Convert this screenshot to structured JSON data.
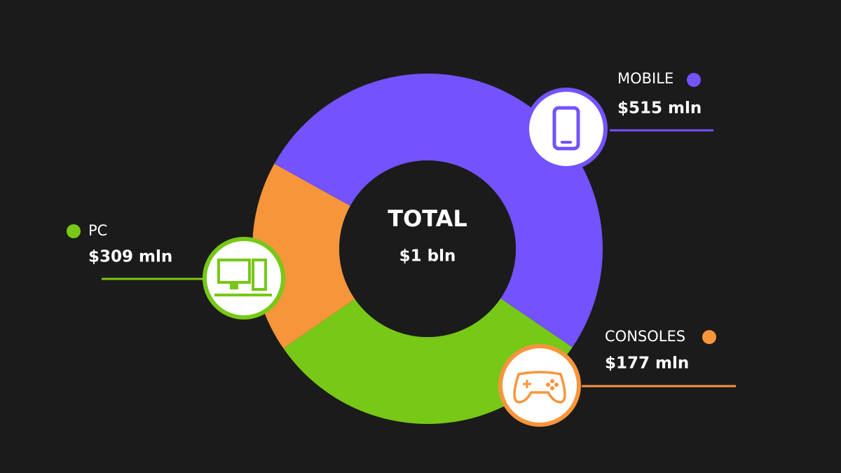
{
  "chart_data": {
    "type": "donut",
    "categories": [
      "MOBILE",
      "PC",
      "CONSOLES"
    ],
    "values": [
      515,
      309,
      177
    ],
    "value_labels": [
      "$515 mln",
      "$309 mln",
      "$177 mln"
    ],
    "colors": [
      "#7452fe",
      "#77c817",
      "#f7953b"
    ],
    "center_title": "TOTAL",
    "center_value": "$1 bln"
  }
}
